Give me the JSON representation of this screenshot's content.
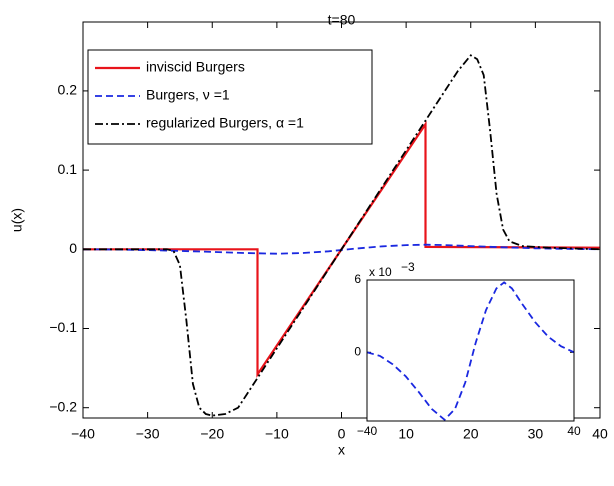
{
  "chart_data": [
    {
      "type": "line",
      "title": "t=80",
      "xlabel": "x",
      "ylabel": "u(x)",
      "xlim": [
        -40,
        40
      ],
      "ylim": [
        -0.213,
        0.287
      ],
      "xticks": [
        {
          "value": -40,
          "label": "−40"
        },
        {
          "value": -30,
          "label": "−30"
        },
        {
          "value": -20,
          "label": "−20"
        },
        {
          "value": -10,
          "label": "−10"
        },
        0,
        10,
        20,
        30,
        40
      ],
      "yticks": [
        {
          "value": -0.2,
          "label": "−0.2"
        },
        {
          "value": -0.1,
          "label": "−0.1"
        },
        0,
        0.1,
        0.2
      ],
      "legend": "upper left",
      "series": [
        {
          "name": "inviscid Burgers",
          "color": "#e8141b",
          "linestyle": "solid",
          "x": [
            -40,
            -13,
            -13,
            13,
            13,
            40
          ],
          "values": [
            0,
            0,
            -0.158,
            0.158,
            0.003,
            0.002
          ]
        },
        {
          "name": "Burgers, ν =1",
          "color": "#1a28e0",
          "linestyle": "dashed",
          "x": [
            -40,
            -35,
            -30,
            -25,
            -20,
            -15,
            -10,
            -6,
            -2,
            2,
            6,
            10,
            13,
            16,
            20,
            25,
            30,
            35,
            40
          ],
          "values": [
            0,
            -0.0003,
            -0.001,
            -0.002,
            -0.0033,
            -0.0047,
            -0.0056,
            -0.0047,
            -0.0025,
            0.0008,
            0.0035,
            0.0053,
            0.0058,
            0.0053,
            0.004,
            0.0025,
            0.0013,
            0.0005,
            0
          ]
        },
        {
          "name": "regularized Burgers, α =1",
          "color": "#000000",
          "linestyle": "dashdot",
          "x": [
            -40,
            -27,
            -26,
            -25,
            -24,
            -23,
            -22,
            -21,
            -20,
            -18,
            -16,
            0,
            18,
            20,
            21,
            22,
            23,
            24,
            25,
            26,
            28,
            32,
            40
          ],
          "values": [
            0,
            0,
            -0.002,
            -0.02,
            -0.09,
            -0.17,
            -0.2,
            -0.208,
            -0.21,
            -0.208,
            -0.2,
            0,
            0.225,
            0.245,
            0.24,
            0.22,
            0.15,
            0.07,
            0.025,
            0.01,
            0.004,
            0.002,
            0
          ]
        }
      ]
    },
    {
      "type": "line",
      "exponent_base": "x 10",
      "exponent_power": "−3",
      "xlim": [
        -40,
        40
      ],
      "ylim": [
        -0.0057,
        0.006
      ],
      "xticks": [
        {
          "value": -40,
          "label": "−40"
        },
        40
      ],
      "yticks": [
        0,
        {
          "value": 0.006,
          "label": "6"
        }
      ],
      "series": [
        {
          "color": "#1a28e0",
          "linestyle": "dashed",
          "x": [
            -40,
            -35,
            -30,
            -25,
            -20,
            -15,
            -10,
            -6,
            -2,
            2,
            6,
            10,
            13,
            16,
            20,
            25,
            30,
            35,
            40
          ],
          "values": [
            0,
            -0.0003,
            -0.001,
            -0.002,
            -0.0033,
            -0.0047,
            -0.0056,
            -0.0047,
            -0.0025,
            0.0008,
            0.0035,
            0.0053,
            0.0058,
            0.0053,
            0.004,
            0.0025,
            0.0013,
            0.0005,
            0
          ]
        }
      ]
    }
  ]
}
